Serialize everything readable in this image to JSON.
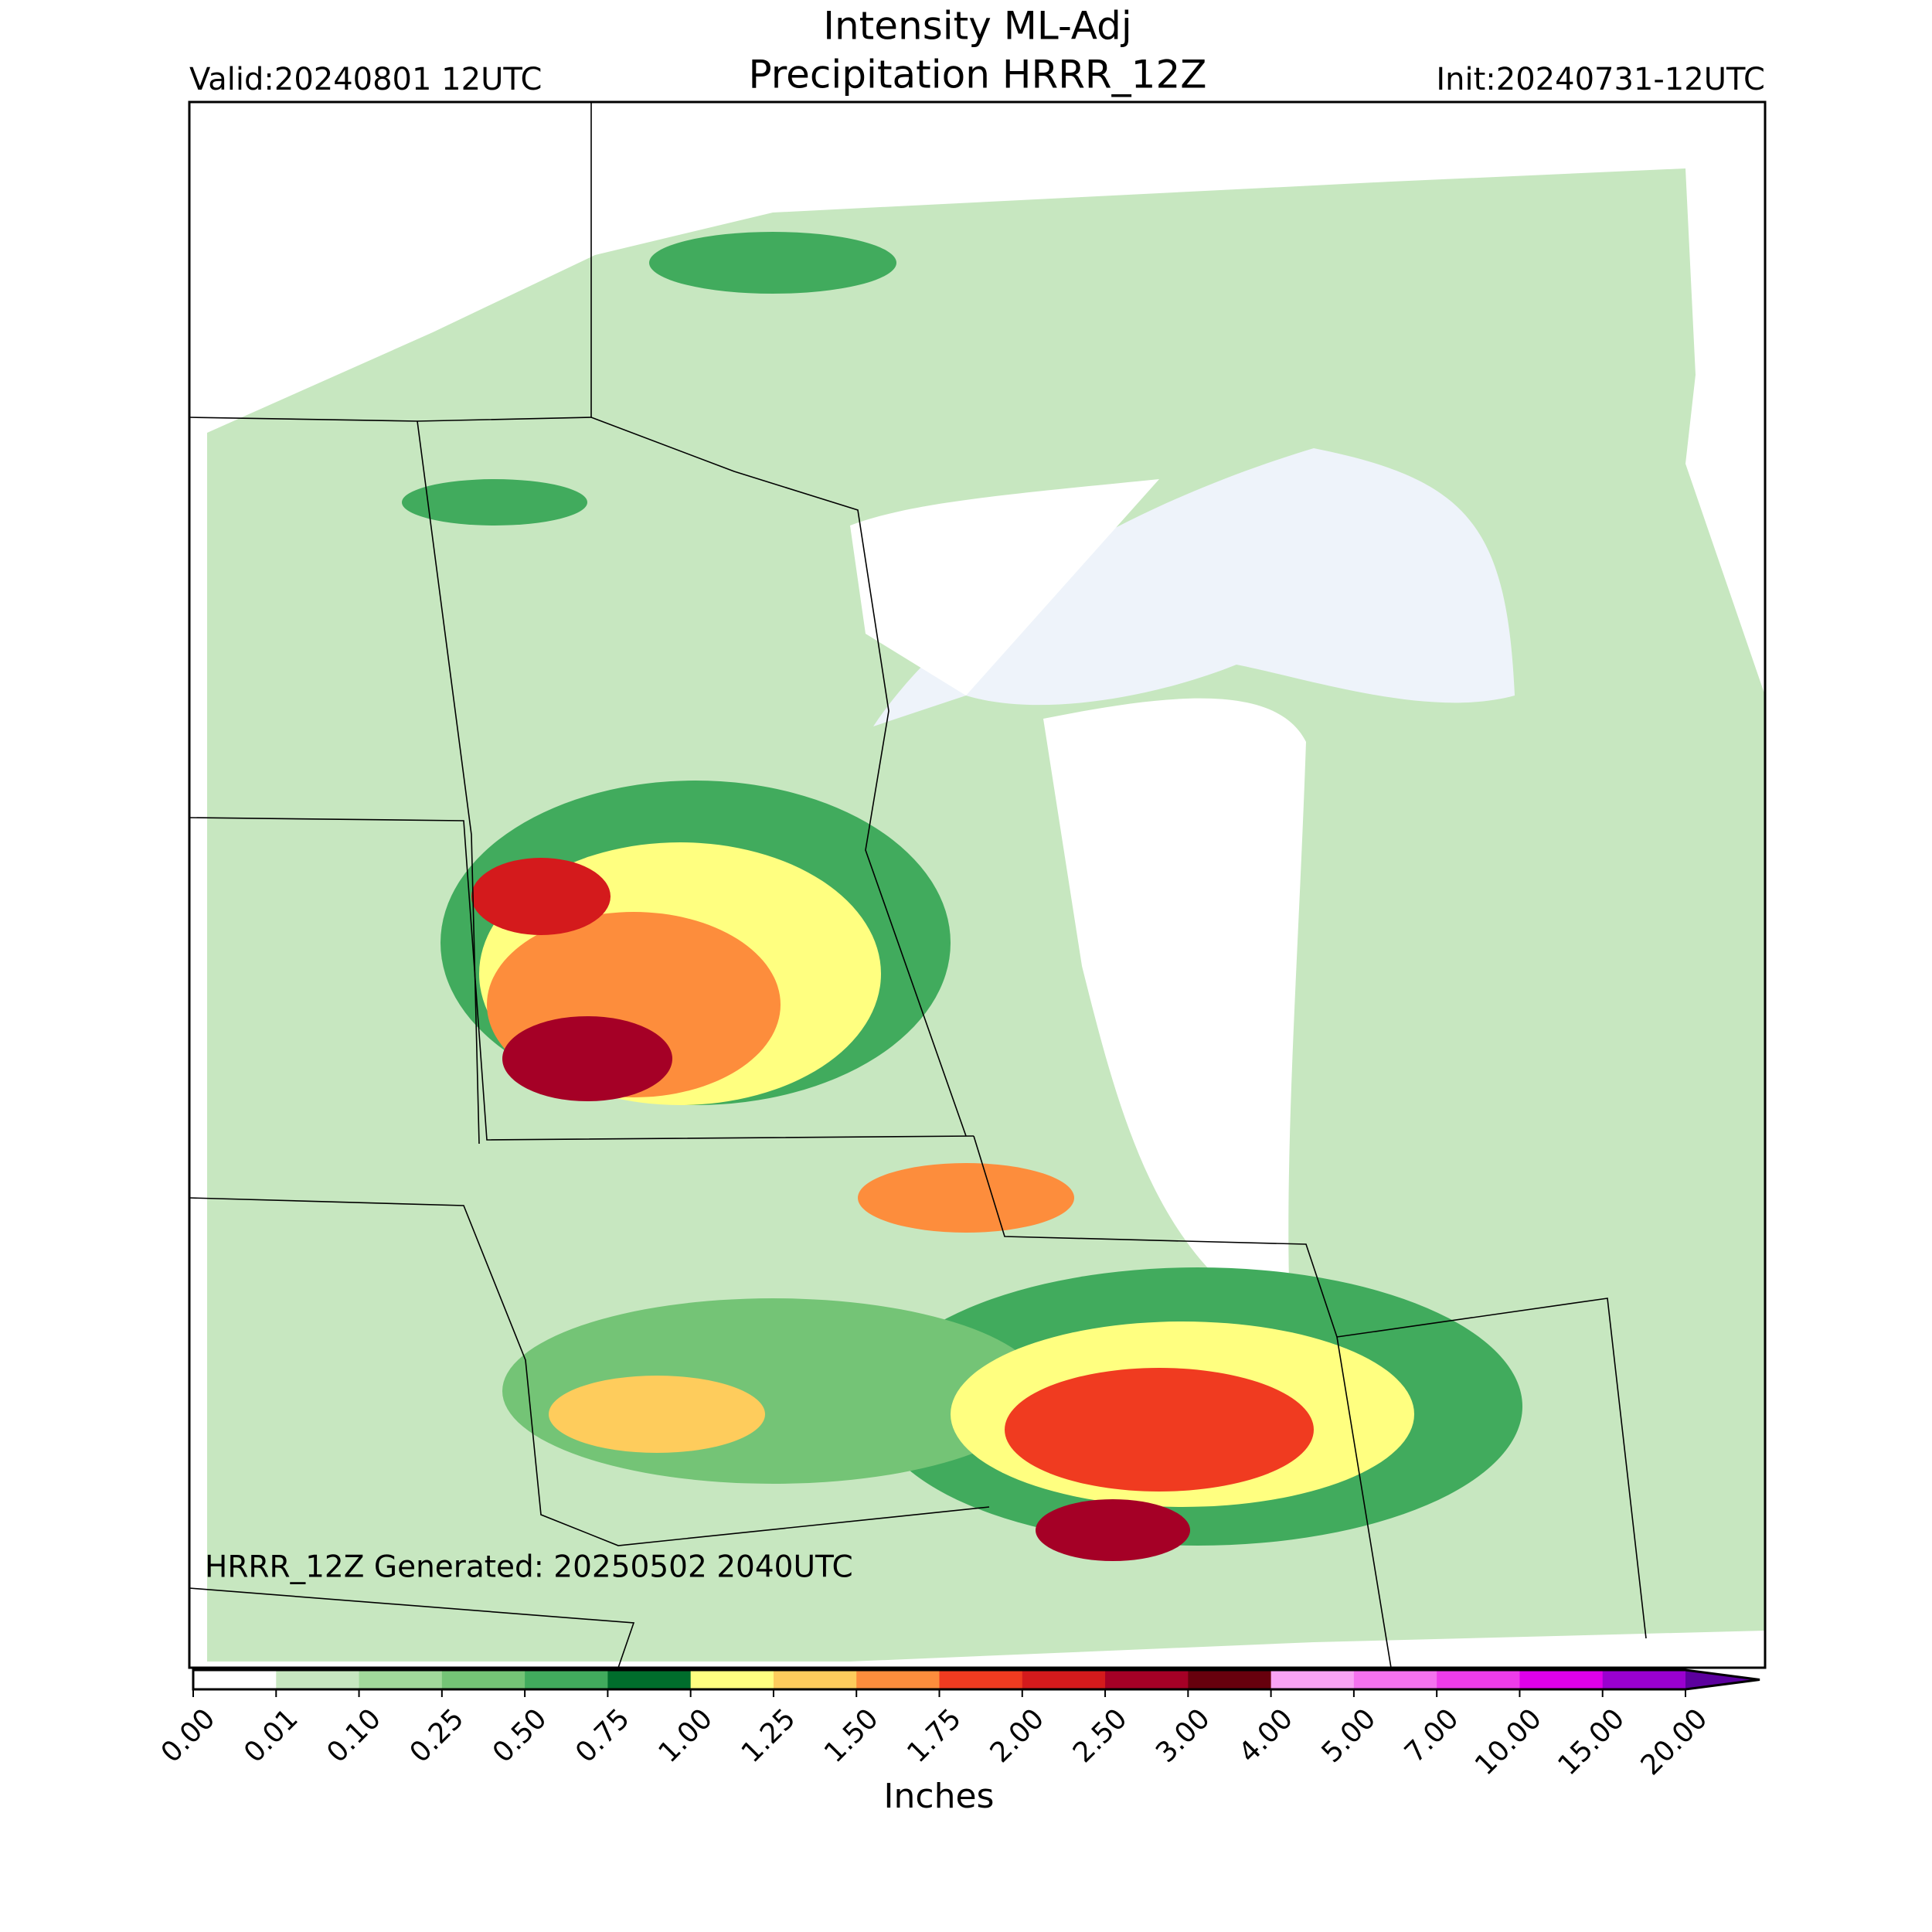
{
  "header": {
    "title": "Intensity ML-Adj",
    "subtitle": "Precipitation HRRR_12Z",
    "valid": "Valid:20240801 12UTC",
    "init": "Init:20240731-12UTC"
  },
  "footer": {
    "generated": "HRRR_12Z Generated: 20250502 2040UTC"
  },
  "colorbar": {
    "label": "Inches",
    "extend": "max",
    "ticks": [
      {
        "value": 0,
        "label": "0.00"
      },
      {
        "value": 0.01,
        "label": "0.01"
      },
      {
        "value": 0.1,
        "label": "0.10"
      },
      {
        "value": 0.25,
        "label": "0.25"
      },
      {
        "value": 0.5,
        "label": "0.50"
      },
      {
        "value": 0.75,
        "label": "0.75"
      },
      {
        "value": 1,
        "label": "1.00"
      },
      {
        "value": 1.25,
        "label": "1.25"
      },
      {
        "value": 1.5,
        "label": "1.50"
      },
      {
        "value": 1.75,
        "label": "1.75"
      },
      {
        "value": 2,
        "label": "2.00"
      },
      {
        "value": 2.5,
        "label": "2.50"
      },
      {
        "value": 3,
        "label": "3.00"
      },
      {
        "value": 4,
        "label": "4.00"
      },
      {
        "value": 5,
        "label": "5.00"
      },
      {
        "value": 7,
        "label": "7.00"
      },
      {
        "value": 10,
        "label": "10.00"
      },
      {
        "value": 15,
        "label": "15.00"
      },
      {
        "value": 20,
        "label": "20.00"
      }
    ],
    "colors": [
      "#ffffff",
      "#c7e7c0",
      "#a1d99b",
      "#74c476",
      "#41ab5d",
      "#006d2c",
      "#ffff80",
      "#fecc5c",
      "#fd8d3c",
      "#f03b20",
      "#d41a1c",
      "#a50026",
      "#67000d",
      "#f9a3f4",
      "#f572ef",
      "#ee3cea",
      "#df00ea",
      "#9a00d0"
    ],
    "over_color": "#5c009e"
  }
}
